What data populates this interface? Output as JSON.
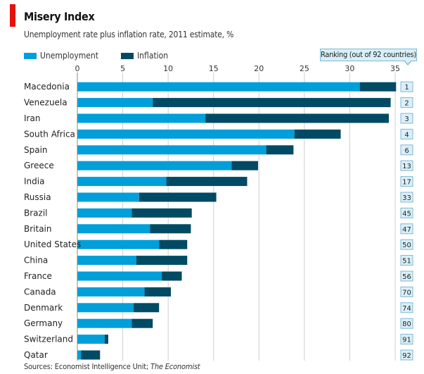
{
  "chart_data": {
    "type": "bar",
    "orientation": "horizontal",
    "stacked": true,
    "title": "Misery Index",
    "subtitle": "Unemployment rate plus inflation rate, 2011 estimate, %",
    "xlabel": "",
    "ylabel": "",
    "xlim": [
      0,
      35
    ],
    "xticks": [
      0,
      5,
      10,
      15,
      20,
      25,
      30,
      35
    ],
    "grid": true,
    "legend_position": "top-left",
    "categories": [
      "Macedonia",
      "Venezuela",
      "Iran",
      "South Africa",
      "Spain",
      "Greece",
      "India",
      "Russia",
      "Brazil",
      "Britain",
      "United States",
      "China",
      "France",
      "Canada",
      "Denmark",
      "Germany",
      "Switzerland",
      "Qatar"
    ],
    "series": [
      {
        "name": "Unemployment",
        "color": "#009fd9",
        "values": [
          31.1,
          8.3,
          14.1,
          23.9,
          20.8,
          17.0,
          9.8,
          6.8,
          6.0,
          8.0,
          9.0,
          6.5,
          9.3,
          7.4,
          6.2,
          6.0,
          3.0,
          0.4
        ]
      },
      {
        "name": "Inflation",
        "color": "#004a63",
        "values": [
          4.0,
          26.2,
          20.2,
          5.1,
          3.0,
          2.9,
          8.9,
          8.5,
          6.6,
          4.5,
          3.1,
          5.6,
          2.2,
          2.9,
          2.8,
          2.3,
          0.4,
          2.1
        ]
      }
    ],
    "ranking_header": "Ranking (out of 92 countries)",
    "rankings": [
      1,
      2,
      3,
      4,
      6,
      13,
      17,
      33,
      45,
      47,
      50,
      51,
      56,
      70,
      74,
      80,
      91,
      92
    ],
    "source_prefix": "Sources: Economist Intelligence Unit; ",
    "source_italic": "The Economist"
  }
}
